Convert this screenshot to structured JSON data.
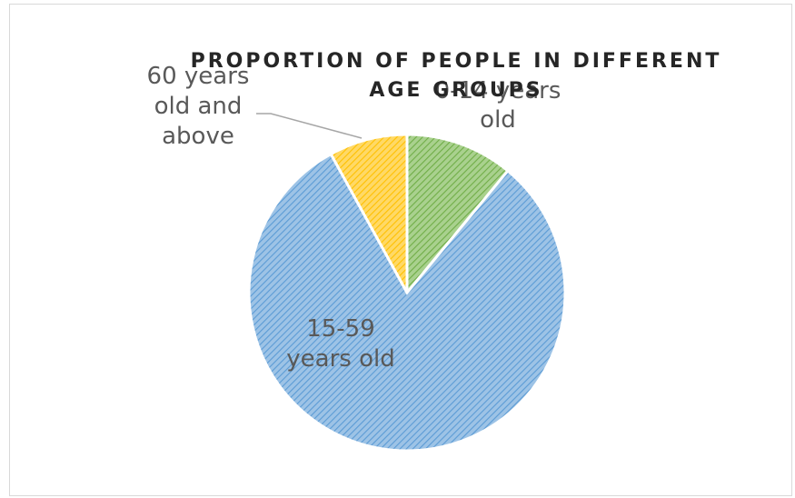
{
  "chart_data": {
    "type": "pie",
    "title": "PROPORTION OF PEOPLE IN DIFFERENT AGE GROUPS",
    "title_lines": [
      "PROPORTION OF PEOPLE IN DIFFERENT",
      "AGE GROUPS"
    ],
    "categories": [
      "0-14 years old",
      "15-59 years old",
      "60 years old and above"
    ],
    "values": [
      11,
      81,
      8
    ],
    "colors": [
      "#a9d18e",
      "#9dc3e6",
      "#ffd966"
    ],
    "stroke_colors": [
      "#70ad47",
      "#5b9bd5",
      "#ffc000"
    ],
    "labels": [
      {
        "lines": [
          "0-14 years",
          "old"
        ]
      },
      {
        "lines": [
          "15-59",
          "years old"
        ]
      },
      {
        "lines": [
          "60 years",
          "old and",
          "above"
        ]
      }
    ],
    "legend": "none",
    "pattern": "diagonal-hatch"
  }
}
